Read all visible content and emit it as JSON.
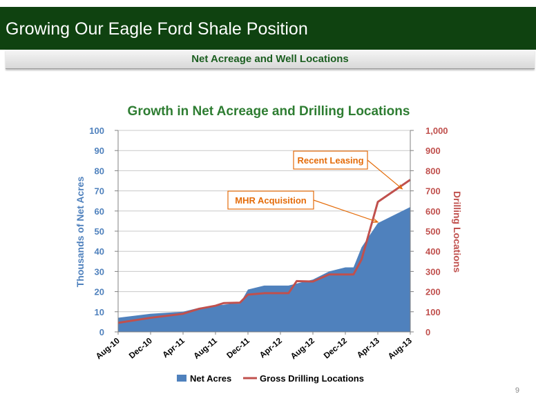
{
  "header": {
    "title": "Growing Our Eagle Ford Shale Position",
    "subtitle": "Net Acreage and Well Locations"
  },
  "page_number": "9",
  "colors": {
    "header_bg": "#0f4210",
    "area_fill": "#4f81bd",
    "line": "#c0504d",
    "title_green": "#2e7d32",
    "callout_orange": "#e46c0a",
    "left_axis": "#4f81bd",
    "right_axis": "#c0504d"
  },
  "chart_data": {
    "type": "area",
    "title": "Growth in Net Acreage and Drilling Locations",
    "x_tick_labels": [
      "Aug-10",
      "Dec-10",
      "Apr-11",
      "Aug-11",
      "Dec-11",
      "Apr-12",
      "Aug-12",
      "Dec-12",
      "Apr-13",
      "Aug-13"
    ],
    "x_months": [
      "Aug-10",
      "Sep-10",
      "Oct-10",
      "Nov-10",
      "Dec-10",
      "Jan-11",
      "Feb-11",
      "Mar-11",
      "Apr-11",
      "May-11",
      "Jun-11",
      "Jul-11",
      "Aug-11",
      "Sep-11",
      "Oct-11",
      "Nov-11",
      "Dec-11",
      "Jan-12",
      "Feb-12",
      "Mar-12",
      "Apr-12",
      "May-12",
      "Jun-12",
      "Jul-12",
      "Aug-12",
      "Sep-12",
      "Oct-12",
      "Nov-12",
      "Dec-12",
      "Jan-13",
      "Feb-13",
      "Mar-13",
      "Apr-13",
      "May-13",
      "Jun-13",
      "Jul-13",
      "Aug-13"
    ],
    "ylabel_left": "Thousands of Net Acres",
    "ylabel_right": "Drilling Locations",
    "ylim_left": [
      0,
      100
    ],
    "ylim_right": [
      0,
      1000
    ],
    "y_ticks_left": [
      "0",
      "10",
      "20",
      "30",
      "40",
      "50",
      "60",
      "70",
      "80",
      "90",
      "100"
    ],
    "y_ticks_right": [
      "0",
      "100",
      "200",
      "300",
      "400",
      "500",
      "600",
      "700",
      "800",
      "900",
      "1,000"
    ],
    "series": [
      {
        "name": "Net Acres",
        "axis": "left",
        "style": "area",
        "points": [
          [
            "Aug-10",
            7
          ],
          [
            "Dec-10",
            9
          ],
          [
            "Apr-11",
            10
          ],
          [
            "Jun-11",
            12
          ],
          [
            "Aug-11",
            13
          ],
          [
            "Oct-11",
            14
          ],
          [
            "Nov-11",
            14
          ],
          [
            "Dec-11",
            21
          ],
          [
            "Feb-12",
            23
          ],
          [
            "May-12",
            23
          ],
          [
            "Jun-12",
            24
          ],
          [
            "Aug-12",
            26
          ],
          [
            "Oct-12",
            30
          ],
          [
            "Dec-12",
            32
          ],
          [
            "Jan-13",
            32
          ],
          [
            "Feb-13",
            42
          ],
          [
            "Apr-13",
            54
          ],
          [
            "Aug-13",
            62
          ]
        ]
      },
      {
        "name": "Gross Drilling Locations",
        "axis": "right",
        "style": "line",
        "points": [
          [
            "Aug-10",
            45
          ],
          [
            "Dec-10",
            70
          ],
          [
            "Apr-11",
            90
          ],
          [
            "Jun-11",
            115
          ],
          [
            "Aug-11",
            130
          ],
          [
            "Sep-11",
            143
          ],
          [
            "Nov-11",
            145
          ],
          [
            "Dec-11",
            185
          ],
          [
            "Feb-12",
            192
          ],
          [
            "May-12",
            192
          ],
          [
            "Jun-12",
            252
          ],
          [
            "Aug-12",
            250
          ],
          [
            "Oct-12",
            285
          ],
          [
            "Jan-13",
            285
          ],
          [
            "Feb-13",
            360
          ],
          [
            "Apr-13",
            645
          ],
          [
            "Aug-13",
            755
          ]
        ]
      }
    ],
    "annotations": [
      {
        "text": "Recent Leasing",
        "target_x": "Jul-13",
        "target_y_right": 710
      },
      {
        "text": "MHR Acquisition",
        "target_x": "Apr-13",
        "target_y_right": 545
      }
    ],
    "legend_position": "bottom",
    "grid": "horizontal"
  }
}
